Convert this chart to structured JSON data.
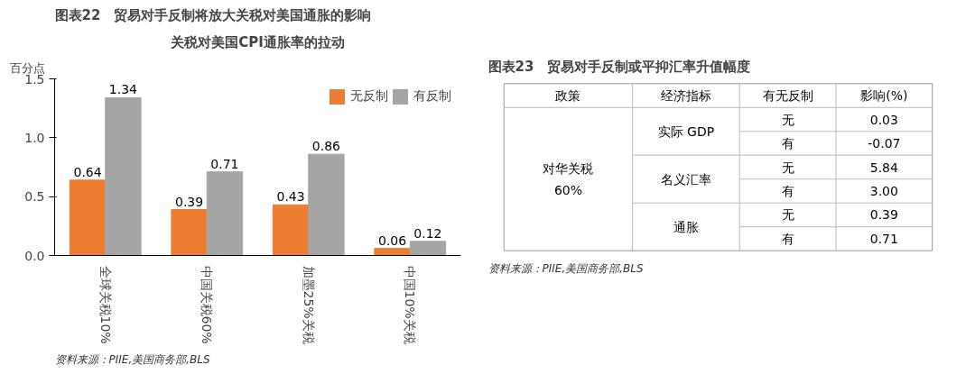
{
  "chart_data": [
    {
      "type": "bar",
      "title": "图表22　贸易对手反制将放大关税对美国通胀的影响",
      "subtitle": "关税对美国CPI通胀率的拉动",
      "ylabel": "百分点",
      "categories": [
        "全球关税10%",
        "中国关税60%",
        "加墨25%关税",
        "中国10%关税"
      ],
      "series": [
        {
          "name": "无反制",
          "color": "#ed7d31",
          "values": [
            0.64,
            0.39,
            0.43,
            0.06
          ]
        },
        {
          "name": "有反制",
          "color": "#a5a5a5",
          "values": [
            1.34,
            0.71,
            0.86,
            0.12
          ]
        }
      ],
      "ylim": [
        0,
        1.5
      ],
      "yticks": [
        {
          "value": 0,
          "label": "0.0"
        },
        {
          "value": 0.5,
          "label": "0.5"
        },
        {
          "value": 1,
          "label": "1.0"
        },
        {
          "value": 1.5,
          "label": "1.5"
        }
      ],
      "data_labels": true,
      "legend": "top right",
      "grid": false,
      "annotations": [
        "资料来源：PIIE,美国商务部,BLS"
      ]
    },
    {
      "type": "other",
      "title": "图表23　贸易对手反制或平抑汇率升值幅度",
      "categories": [
        "政策",
        "经济指标",
        "有无反制",
        "影响(%)"
      ],
      "cell_labels": [
        [
          "对华关税\n60%",
          "实际 GDP",
          "无",
          "0.03"
        ],
        [
          null,
          null,
          "有",
          "-0.07"
        ],
        [
          null,
          "名义汇率",
          "无",
          "5.84"
        ],
        [
          null,
          null,
          "有",
          "3.00"
        ],
        [
          null,
          "通胀",
          "无",
          "0.39"
        ],
        [
          null,
          null,
          "有",
          "0.71"
        ]
      ],
      "annotations": [
        "资料来源：PIIE,美国商务部,BLS"
      ]
    }
  ]
}
